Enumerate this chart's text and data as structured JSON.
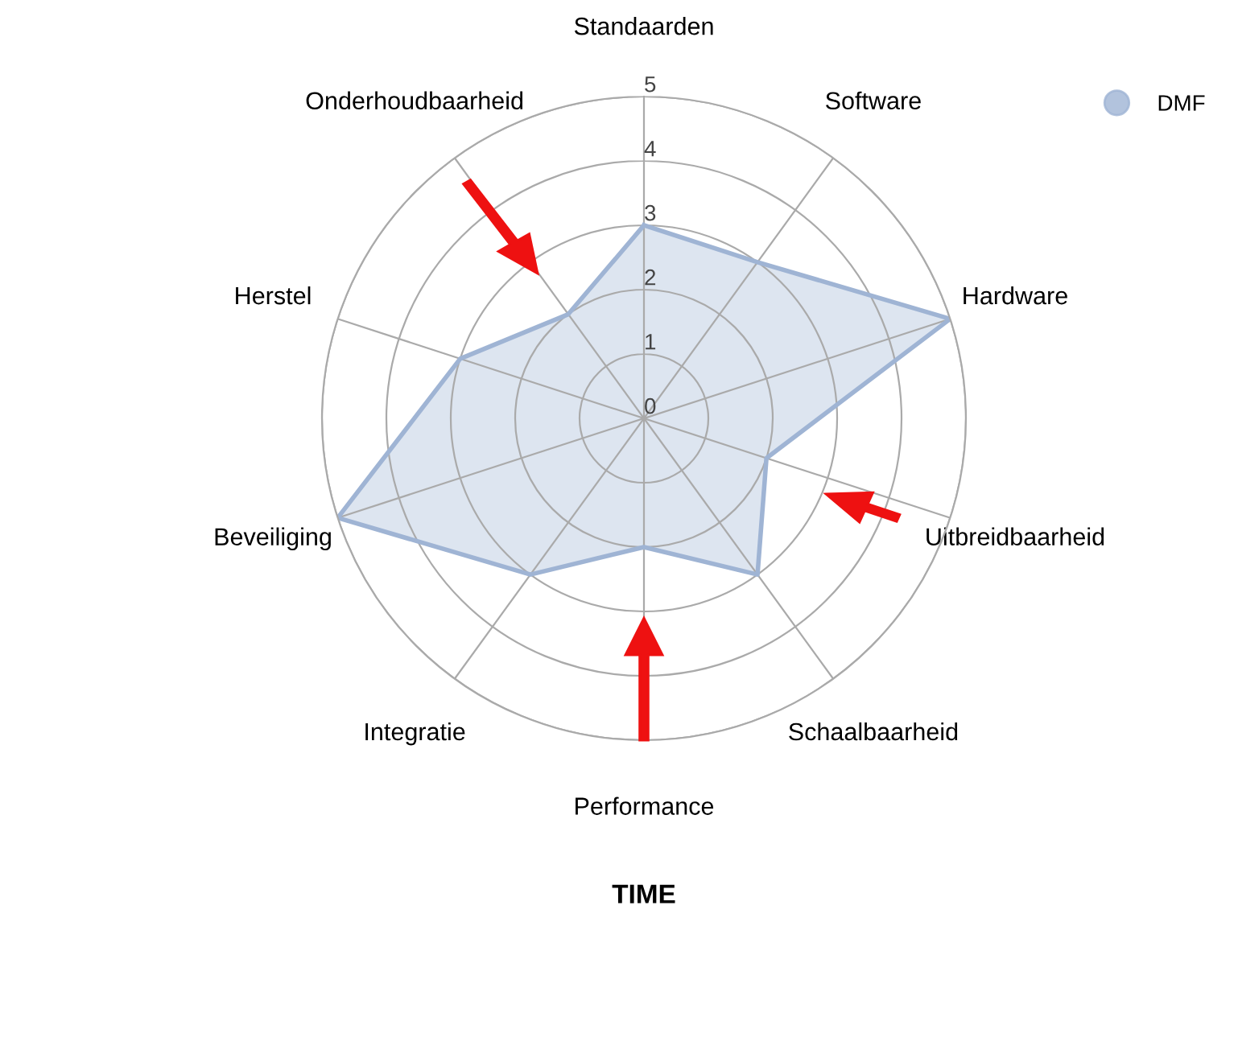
{
  "chart_data": {
    "type": "radar",
    "title": "TIME",
    "categories": [
      "Standaarden",
      "Software",
      "Hardware",
      "Uitbreidbaarheid",
      "Schaalbaarheid",
      "Performance",
      "Integratie",
      "Beveiliging",
      "Herstel",
      "Onderhoudbaarheid"
    ],
    "series": [
      {
        "name": "DMF",
        "color": "#9fb4d4",
        "values": [
          3,
          3,
          5,
          2,
          3,
          2,
          3,
          5,
          3,
          2
        ]
      }
    ],
    "ylim": [
      0,
      5
    ],
    "yticks": [
      0,
      1,
      2,
      3,
      4,
      5
    ],
    "grid": true,
    "legend": "top right",
    "marker": "none"
  }
}
